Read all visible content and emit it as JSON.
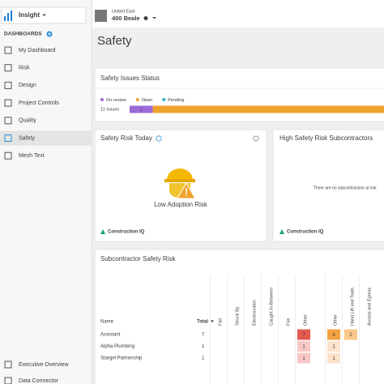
{
  "app": {
    "name": "Insight"
  },
  "sidebar": {
    "section": "DASHBOARDS",
    "items": [
      "My Dashboard",
      "Risk",
      "Design",
      "Project Controls",
      "Quality",
      "Safety",
      "Mesh Text"
    ],
    "selected": 5,
    "footer_items": [
      "Executive Overview",
      "Data Connector"
    ]
  },
  "project": {
    "company": "United East",
    "name": "400 Beale"
  },
  "page_title": "Safety",
  "issues_status": {
    "type": "bar",
    "orientation": "horizontal",
    "stacked": true,
    "title": "Safety Issues Status",
    "categories": [
      "11 Issues"
    ],
    "xlim": [
      0,
      11
    ],
    "series": [
      {
        "name": "On review",
        "color": "#9b6bd8",
        "values": [
          1
        ],
        "value_labels": [
          "1"
        ]
      },
      {
        "name": "Open",
        "color": "#f0a22e",
        "values": [
          10
        ]
      },
      {
        "name": "Pending",
        "color": "#2fb3c4",
        "values": [
          0
        ]
      }
    ]
  },
  "risk_today": {
    "title": "Safety Risk Today",
    "status": "Low Adoption Risk",
    "footer": "Construction IQ"
  },
  "high_risk": {
    "title": "High Safety Risk Subcontractors",
    "message": "There are no subcontractors at risk",
    "footer": "Construction IQ"
  },
  "sub_risk": {
    "title": "Subcontractor Safety Risk",
    "name_header": "Name",
    "total_header": "Total",
    "columns": [
      "Fall",
      "Struck By",
      "Electrocution",
      "Caught In-Between",
      "Fire",
      "Other",
      "Other",
      "Hand Lift and Tools",
      "Access and Egress"
    ],
    "rows": [
      {
        "name": "Assistant",
        "total": 7,
        "cells": [
          null,
          null,
          null,
          null,
          null,
          7,
          4,
          2,
          null
        ],
        "colors": [
          null,
          null,
          null,
          null,
          null,
          "#e55a4f",
          "#f5a142",
          "#fbc98a",
          null
        ]
      },
      {
        "name": "Alpha Plumbing",
        "total": 1,
        "cells": [
          null,
          null,
          null,
          null,
          null,
          1,
          1,
          null,
          null
        ],
        "colors": [
          null,
          null,
          null,
          null,
          null,
          "#f9c8c6",
          "#fde2cc",
          null,
          null
        ]
      },
      {
        "name": "Stargel Partnership",
        "total": 1,
        "cells": [
          null,
          null,
          null,
          null,
          null,
          1,
          1,
          null,
          null
        ],
        "colors": [
          null,
          null,
          null,
          null,
          null,
          "#f9c8c6",
          "#fde2cc",
          null,
          null
        ]
      }
    ]
  }
}
